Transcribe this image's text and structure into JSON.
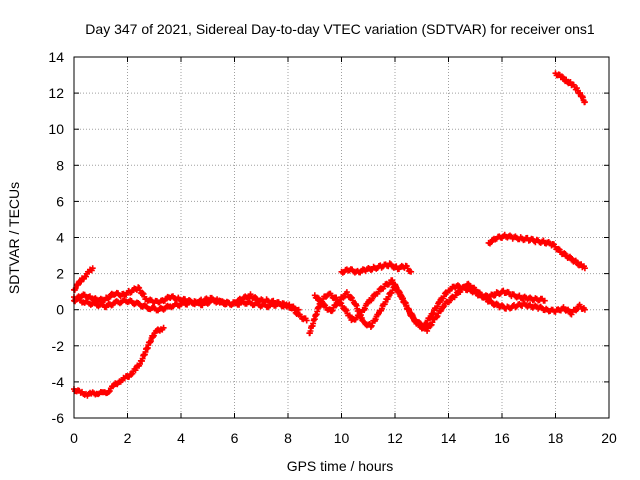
{
  "chart_data": {
    "type": "scatter",
    "title": "Day 347 of 2021, Sidereal Day-to-day VTEC variation (SDTVAR) for receiver ons1",
    "xlabel": "GPS time / hours",
    "ylabel": "SDTVAR / TECUs",
    "xlim": [
      0,
      20
    ],
    "ylim": [
      -6,
      14
    ],
    "xticks": [
      0,
      2,
      4,
      6,
      8,
      10,
      12,
      14,
      16,
      18,
      20
    ],
    "yticks": [
      -6,
      -4,
      -2,
      0,
      2,
      4,
      6,
      8,
      10,
      12,
      14
    ],
    "grid": true,
    "legend": "none",
    "marker": "+",
    "colors": {
      "series": "#ff0000",
      "grid": "#a0a0a0",
      "axis": "#000000"
    },
    "series": [
      {
        "name": "arc-rising-start",
        "x": [
          0.0,
          0.15,
          0.3,
          0.45,
          0.6,
          0.7
        ],
        "y": [
          1.1,
          1.4,
          1.7,
          1.9,
          2.15,
          2.3
        ]
      },
      {
        "name": "arc-negative-start",
        "x": [
          0.0,
          0.1,
          0.3,
          0.5,
          0.7,
          0.9,
          1.1,
          1.3,
          1.5,
          1.7,
          1.9,
          2.1,
          2.3,
          2.5,
          2.65,
          2.8,
          2.95,
          3.1,
          3.25,
          3.35
        ],
        "y": [
          -4.4,
          -4.5,
          -4.6,
          -4.7,
          -4.65,
          -4.6,
          -4.65,
          -4.5,
          -4.2,
          -3.95,
          -3.8,
          -3.6,
          -3.3,
          -2.9,
          -2.4,
          -1.9,
          -1.45,
          -1.2,
          -1.05,
          -1.0
        ]
      },
      {
        "name": "arc-baseline",
        "x": [
          0.0,
          0.3,
          0.6,
          0.9,
          1.2,
          1.5,
          1.8,
          2.1,
          2.4,
          2.7,
          3.0,
          3.3,
          3.6,
          3.9,
          4.2,
          4.5,
          4.8,
          5.1,
          5.4,
          5.7,
          6.0,
          6.3,
          6.6,
          6.9,
          7.2,
          7.5,
          7.8,
          8.1,
          8.4,
          8.7
        ],
        "y": [
          0.5,
          0.8,
          0.7,
          0.5,
          0.6,
          0.9,
          0.8,
          1.0,
          1.2,
          0.6,
          0.4,
          0.5,
          0.7,
          0.6,
          0.5,
          0.4,
          0.5,
          0.6,
          0.5,
          0.3,
          0.4,
          0.6,
          0.8,
          0.5,
          0.5,
          0.4,
          0.3,
          0.2,
          -0.3,
          -0.6
        ]
      },
      {
        "name": "arc-baseline-lower",
        "x": [
          0.0,
          0.4,
          0.8,
          1.2,
          1.6,
          2.0,
          2.4,
          2.8,
          3.2,
          3.6,
          4.0,
          4.4,
          4.8,
          5.2,
          5.6,
          6.0,
          6.4,
          6.8,
          7.2,
          7.6,
          8.0,
          8.4
        ],
        "y": [
          0.7,
          0.4,
          0.3,
          0.2,
          0.4,
          0.5,
          0.3,
          0.1,
          0.0,
          0.2,
          0.3,
          0.4,
          0.3,
          0.5,
          0.4,
          0.3,
          0.4,
          0.3,
          0.2,
          0.3,
          0.2,
          0.0
        ]
      },
      {
        "name": "arc-midday-a",
        "x": [
          8.8,
          9.0,
          9.2,
          9.5,
          9.8,
          10.1,
          10.4,
          10.7,
          11.0,
          11.3,
          11.6,
          11.9,
          12.2,
          12.5,
          12.8,
          13.1,
          13.4,
          13.7,
          14.0,
          14.3,
          14.6,
          14.9,
          15.2,
          15.5,
          15.8,
          16.1,
          16.4,
          16.7,
          17.0,
          17.3,
          17.6
        ],
        "y": [
          -1.3,
          -0.5,
          0.4,
          0.9,
          0.6,
          0.1,
          -0.6,
          -0.3,
          0.4,
          0.9,
          1.3,
          1.6,
          0.8,
          0.0,
          -0.7,
          -0.9,
          -0.2,
          0.5,
          1.1,
          1.3,
          1.2,
          1.0,
          0.8,
          0.7,
          0.9,
          1.0,
          0.8,
          0.7,
          0.6,
          0.6,
          0.5
        ]
      },
      {
        "name": "arc-midday-b",
        "x": [
          9.0,
          9.3,
          9.6,
          9.9,
          10.2,
          10.5,
          10.8,
          11.1,
          11.4,
          11.7,
          12.0,
          12.3,
          12.6,
          12.9,
          13.2,
          13.5,
          13.8,
          14.1,
          14.4,
          14.7,
          15.0,
          15.3,
          15.6,
          15.9,
          16.2,
          16.5,
          16.8,
          17.1,
          17.4,
          17.7,
          18.0,
          18.3,
          18.6,
          18.9,
          19.1
        ],
        "y": [
          0.8,
          0.3,
          -0.1,
          0.5,
          0.9,
          0.4,
          -0.7,
          -0.9,
          -0.2,
          0.6,
          1.3,
          0.6,
          -0.3,
          -0.9,
          -1.1,
          -0.5,
          0.2,
          0.6,
          1.0,
          1.4,
          1.1,
          0.7,
          0.4,
          0.2,
          0.1,
          0.2,
          0.3,
          0.2,
          0.1,
          0.0,
          -0.1,
          0.1,
          -0.2,
          0.2,
          0.0
        ]
      },
      {
        "name": "arc-midday-high",
        "x": [
          10.0,
          10.3,
          10.6,
          10.9,
          11.2,
          11.5,
          11.8,
          12.1,
          12.4,
          12.6
        ],
        "y": [
          2.1,
          2.2,
          2.1,
          2.2,
          2.3,
          2.4,
          2.5,
          2.3,
          2.4,
          2.1
        ]
      },
      {
        "name": "arc-evening-a",
        "x": [
          15.5,
          15.8,
          16.1,
          16.4,
          16.7,
          17.0,
          17.3,
          17.6,
          17.9,
          18.2,
          18.5,
          18.8,
          19.0,
          19.1
        ],
        "y": [
          3.7,
          3.95,
          4.1,
          4.0,
          3.95,
          3.9,
          3.8,
          3.75,
          3.6,
          3.2,
          2.9,
          2.6,
          2.4,
          2.3
        ]
      },
      {
        "name": "arc-evening-b",
        "x": [
          18.0,
          18.2,
          18.4,
          18.6,
          18.8,
          18.95,
          19.1
        ],
        "y": [
          13.1,
          12.9,
          12.7,
          12.5,
          12.2,
          11.9,
          11.5
        ]
      }
    ]
  }
}
